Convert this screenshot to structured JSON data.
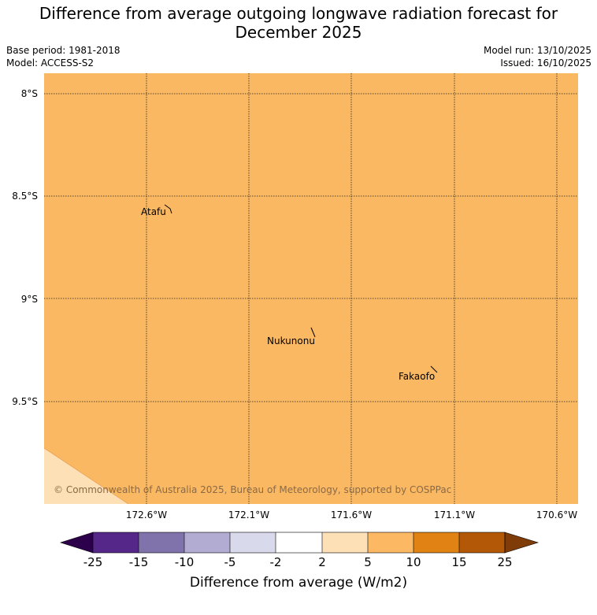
{
  "header": {
    "title_line1": "Difference from average outgoing longwave radiation forecast for",
    "title_line2": "December 2025",
    "base_period": "Base period: 1981-2018",
    "model": "Model: ACCESS-S2",
    "model_run": "Model run: 13/10/2025",
    "issued": "Issued: 16/10/2025"
  },
  "map": {
    "lat_labels": [
      "8°S",
      "8.5°S",
      "9°S",
      "9.5°S"
    ],
    "lon_labels": [
      "172.6°W",
      "172.1°W",
      "171.6°W",
      "171.1°W",
      "170.6°W"
    ],
    "places": [
      {
        "name": "Atafu"
      },
      {
        "name": "Nukunonu"
      },
      {
        "name": "Fakaofo"
      }
    ],
    "copyright": "© Commonwealth of Australia 2025, Bureau of Meteorology, supported by COSPPac",
    "fill_color": "#fbb862",
    "corner_color": "#fde0b6"
  },
  "colorbar": {
    "label": "Difference from average (W/m2)",
    "ticks": [
      "-25",
      "-15",
      "-10",
      "-5",
      "-2",
      "2",
      "5",
      "10",
      "15",
      "25"
    ],
    "colors": [
      "#2d004b",
      "#542788",
      "#8073ac",
      "#b2abd2",
      "#d8daeb",
      "#ffffff",
      "#fee0b6",
      "#fdb863",
      "#e08214",
      "#b35806",
      "#7f3b08"
    ]
  }
}
